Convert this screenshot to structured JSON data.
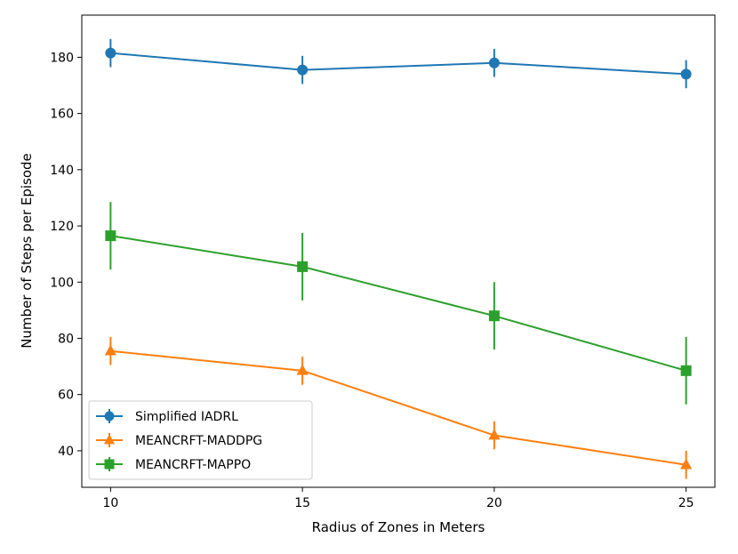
{
  "chart_data": {
    "type": "line",
    "title": "",
    "xlabel": "Radius of Zones in Meters",
    "ylabel": "Number of Steps per Episode",
    "x": [
      10,
      15,
      20,
      25
    ],
    "xticks": [
      "10",
      "15",
      "20",
      "25"
    ],
    "yticks": [
      "40",
      "60",
      "80",
      "100",
      "120",
      "140",
      "160",
      "180"
    ],
    "ytick_values": [
      40,
      60,
      80,
      100,
      120,
      140,
      160,
      180
    ],
    "xlim": [
      9.25,
      25.75
    ],
    "ylim": [
      27,
      195
    ],
    "grid": false,
    "legend_position": "lower-left",
    "series": [
      {
        "name": "Simplified IADRL",
        "color": "#1f77b4",
        "marker": "circle",
        "values": [
          181.5,
          175.5,
          178,
          174
        ],
        "errors": [
          5,
          5,
          5,
          5
        ]
      },
      {
        "name": "MEANCRFT-MADDPG",
        "color": "#ff7f0e",
        "marker": "triangle",
        "values": [
          75.5,
          68.5,
          45.5,
          35
        ],
        "errors": [
          5,
          5,
          5,
          5
        ]
      },
      {
        "name": "MEANCRFT-MAPPO",
        "color": "#2ca02c",
        "marker": "square",
        "values": [
          116.5,
          105.5,
          88,
          68.5
        ],
        "errors": [
          12,
          12,
          12,
          12
        ]
      }
    ]
  }
}
